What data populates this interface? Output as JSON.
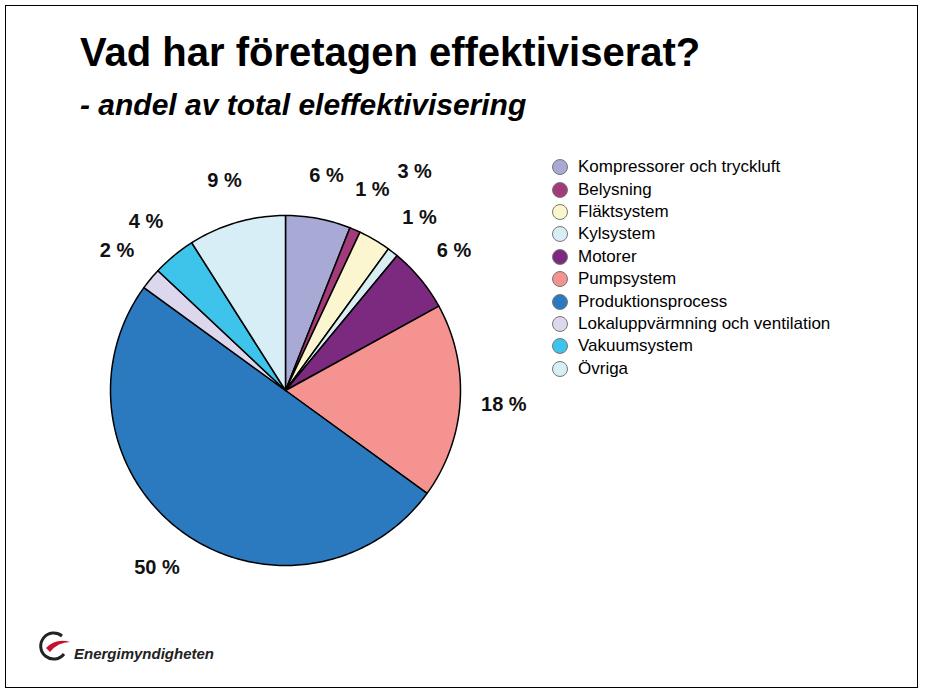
{
  "chart_data": {
    "type": "pie",
    "title": "Vad har företagen effektiviserat?",
    "subtitle": "- andel av total eleffektivisering",
    "categories": [
      "Kompressorer och tryckluft",
      "Belysning",
      "Fläktsystem",
      "Kylsystem",
      "Motorer",
      "Pumpsystem",
      "Produktionsprocess",
      "Lokaluppvärmning och ventilation",
      "Vakuumsystem",
      "Övriga"
    ],
    "values": [
      6,
      1,
      3,
      1,
      6,
      18,
      50,
      2,
      4,
      9
    ],
    "value_labels": [
      "6 %",
      "1 %",
      "3 %",
      "1 %",
      "6 %",
      "18 %",
      "50 %",
      "2 %",
      "4 %",
      "9 %"
    ],
    "colors": [
      "#a9a9d6",
      "#a33a7a",
      "#fbf6cf",
      "#d8eef2",
      "#7b2a7f",
      "#f49390",
      "#2b7ac0",
      "#dcd7ec",
      "#3ec3ea",
      "#d8eef6"
    ],
    "data_labels": true,
    "legend": "right",
    "annotations": [
      "Energimyndigheten"
    ]
  }
}
